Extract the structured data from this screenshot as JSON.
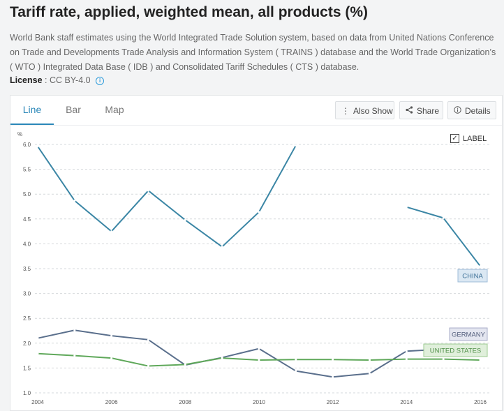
{
  "header": {
    "title": "Tariff rate, applied, weighted mean, all products (%)",
    "description": "World Bank staff estimates using the World Integrated Trade Solution system, based on data from United Nations Conference on Trade and Developments Trade Analysis and Information System ( TRAINS ) database and the World Trade Organization’s ( WTO ) Integrated Data Base ( IDB ) and Consolidated Tariff Schedules ( CTS ) database.",
    "license_label": "License",
    "license_value": ": CC BY-4.0"
  },
  "tabs": {
    "line": "Line",
    "bar": "Bar",
    "map": "Map"
  },
  "toolbar": {
    "also_show": "Also Show",
    "share": "Share",
    "details": "Details"
  },
  "label_toggle": {
    "text": "LABEL",
    "checked": true
  },
  "colors": {
    "china": "#3b86a5",
    "germany": "#5a6f8c",
    "united_states": "#5fa85a",
    "accent": "#2a87b8"
  },
  "chart_data": {
    "type": "line",
    "ylabel": "%",
    "ylim": [
      1.0,
      6.0
    ],
    "yticks": [
      "1.0",
      "1.5",
      "2.0",
      "2.5",
      "3.0",
      "3.5",
      "4.0",
      "4.5",
      "5.0",
      "5.5",
      "6.0"
    ],
    "xticks": [
      "2004",
      "2006",
      "2008",
      "2010",
      "2012",
      "2014",
      "2016"
    ],
    "x": [
      2004,
      2005,
      2006,
      2007,
      2008,
      2009,
      2010,
      2011,
      2012,
      2013,
      2014,
      2015,
      2016
    ],
    "grid": true,
    "series": [
      {
        "name": "CHINA",
        "key": "china",
        "values": [
          5.96,
          4.87,
          4.25,
          5.07,
          4.48,
          3.94,
          4.64,
          5.98,
          null,
          null,
          4.74,
          4.52,
          3.55
        ]
      },
      {
        "name": "GERMANY",
        "key": "germany",
        "values": [
          2.1,
          2.26,
          2.15,
          2.07,
          1.56,
          1.71,
          1.89,
          1.44,
          1.32,
          1.39,
          1.84,
          1.88,
          null
        ]
      },
      {
        "name": "UNITED STATES",
        "key": "united_states",
        "values": [
          1.79,
          1.75,
          1.7,
          1.54,
          1.57,
          1.7,
          1.66,
          1.67,
          1.67,
          1.66,
          1.68,
          1.68,
          1.66
        ]
      }
    ]
  }
}
